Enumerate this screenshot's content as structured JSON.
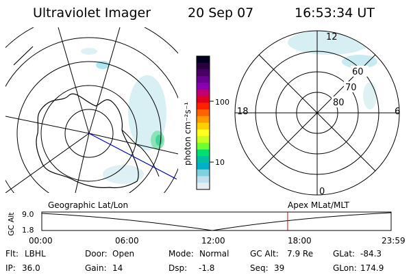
{
  "header": {
    "instrument": "Ultraviolet Imager",
    "date": "20 Sep 07",
    "time": "16:53:34 UT"
  },
  "colorbar": {
    "label": "photon cm⁻²s⁻¹",
    "tick_labels": [
      "100",
      "10"
    ],
    "colors": [
      "#000020",
      "#2b003f",
      "#4a0065",
      "#6a0090",
      "#8a00b0",
      "#c00070",
      "#e00020",
      "#ff2000",
      "#ff6000",
      "#ff9a00",
      "#ffd000",
      "#ffff20",
      "#c8ff20",
      "#70ff30",
      "#00e070",
      "#00c0a0",
      "#00b0c8",
      "#80d0e0",
      "#c0e0f0",
      "#e6eef4"
    ]
  },
  "left_map": {
    "labels": []
  },
  "right_map": {
    "lat_labels": [
      "60",
      "70",
      "80"
    ],
    "mlt_labels": {
      "top": "12",
      "left": "18",
      "right": "6",
      "bottom": "0"
    }
  },
  "timeline": {
    "axis_title": "GC Alt",
    "y_ticks": [
      "9.0",
      "1.8"
    ],
    "left_caption": "Geographic Lat/Lon",
    "right_caption": "Apex MLat/MLT",
    "x_ticks": [
      "00:00",
      "06:00",
      "12:00",
      "18:00",
      "23:59"
    ],
    "current_marker_hour": 16.89,
    "marker_color": "#e00000"
  },
  "footer": {
    "row1": [
      {
        "label": "Flt:",
        "value": "LBHL"
      },
      {
        "label": "Door:",
        "value": "Open"
      },
      {
        "label": "Mode:",
        "value": "Normal"
      },
      {
        "label": "GC Alt:",
        "value": "7.9 Re"
      },
      {
        "label": "GLat:",
        "value": "-84.3"
      }
    ],
    "row2": [
      {
        "label": "IP:",
        "value": "36.0"
      },
      {
        "label": "Gain:",
        "value": "14"
      },
      {
        "label": "Dsp:",
        "value": "-1.8"
      },
      {
        "label": "Seq:",
        "value": "39"
      },
      {
        "label": "GLon:",
        "value": "174.9"
      }
    ]
  }
}
